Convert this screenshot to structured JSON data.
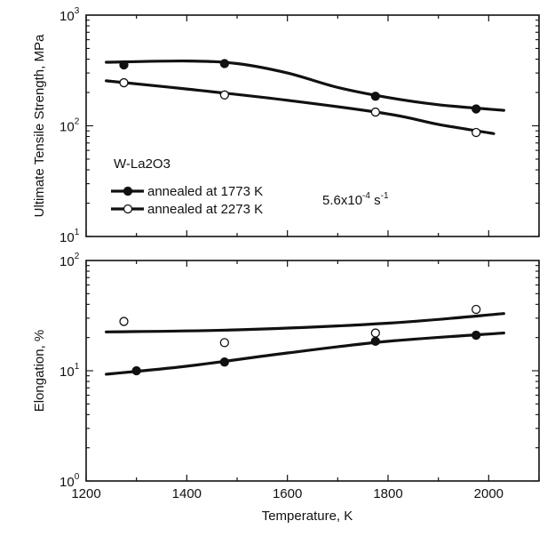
{
  "chart_data": [
    {
      "type": "line",
      "panel": "top",
      "ylabel": "Ultimate Tensile Strength, MPa",
      "yscale": "log",
      "ylim": [
        10,
        1000
      ],
      "y_ticks": [
        {
          "value": 10,
          "base": "10",
          "exp": "1"
        },
        {
          "value": 100,
          "base": "10",
          "exp": "2"
        },
        {
          "value": 1000,
          "base": "10",
          "exp": "3"
        }
      ],
      "xlim": [
        1200,
        2100
      ],
      "material_label": "W-La2O3",
      "strain_rate": {
        "base": "5.6x10",
        "exp": "-4",
        "unit_base": " s",
        "unit_exp": "-1"
      },
      "legend_position": "lower-left",
      "series": [
        {
          "name": "annealed at 1773 K",
          "marker": "filled",
          "color": "#111111",
          "points": [
            {
              "x": 1275,
              "y": 355
            },
            {
              "x": 1475,
              "y": 365
            },
            {
              "x": 1775,
              "y": 185
            },
            {
              "x": 1975,
              "y": 142
            }
          ],
          "fit": [
            {
              "x": 1240,
              "y": 375
            },
            {
              "x": 1400,
              "y": 385
            },
            {
              "x": 1500,
              "y": 365
            },
            {
              "x": 1600,
              "y": 300
            },
            {
              "x": 1700,
              "y": 222
            },
            {
              "x": 1800,
              "y": 180
            },
            {
              "x": 1900,
              "y": 155
            },
            {
              "x": 2030,
              "y": 138
            }
          ]
        },
        {
          "name": "annealed at 2273 K",
          "marker": "open",
          "color": "#111111",
          "points": [
            {
              "x": 1275,
              "y": 245
            },
            {
              "x": 1475,
              "y": 190
            },
            {
              "x": 1775,
              "y": 133
            },
            {
              "x": 1975,
              "y": 87
            }
          ],
          "fit": [
            {
              "x": 1240,
              "y": 255
            },
            {
              "x": 1400,
              "y": 215
            },
            {
              "x": 1600,
              "y": 170
            },
            {
              "x": 1800,
              "y": 128
            },
            {
              "x": 1900,
              "y": 103
            },
            {
              "x": 2010,
              "y": 85
            }
          ]
        }
      ]
    },
    {
      "type": "line",
      "panel": "bottom",
      "ylabel": "Elongation, %",
      "xlabel": "Temperature, K",
      "yscale": "log",
      "ylim": [
        1,
        100
      ],
      "y_ticks": [
        {
          "value": 1,
          "base": "10",
          "exp": "0"
        },
        {
          "value": 10,
          "base": "10",
          "exp": "1"
        },
        {
          "value": 100,
          "base": "10",
          "exp": "2"
        }
      ],
      "xlim": [
        1200,
        2100
      ],
      "x_ticks": [
        1200,
        1400,
        1600,
        1800,
        2000
      ],
      "series": [
        {
          "name": "annealed at 1773 K",
          "marker": "filled",
          "color": "#111111",
          "points": [
            {
              "x": 1300,
              "y": 10
            },
            {
              "x": 1475,
              "y": 12
            },
            {
              "x": 1775,
              "y": 18.5
            },
            {
              "x": 1975,
              "y": 21
            }
          ],
          "fit": [
            {
              "x": 1240,
              "y": 9.3
            },
            {
              "x": 1400,
              "y": 11
            },
            {
              "x": 1600,
              "y": 14.5
            },
            {
              "x": 1800,
              "y": 18.5
            },
            {
              "x": 2030,
              "y": 22
            }
          ]
        },
        {
          "name": "annealed at 2273 K",
          "marker": "open",
          "color": "#111111",
          "points": [
            {
              "x": 1275,
              "y": 28
            },
            {
              "x": 1475,
              "y": 18
            },
            {
              "x": 1775,
              "y": 22
            },
            {
              "x": 1975,
              "y": 36
            }
          ],
          "fit": [
            {
              "x": 1240,
              "y": 22.5
            },
            {
              "x": 1500,
              "y": 23.5
            },
            {
              "x": 1800,
              "y": 27
            },
            {
              "x": 2030,
              "y": 33
            }
          ]
        }
      ]
    }
  ]
}
